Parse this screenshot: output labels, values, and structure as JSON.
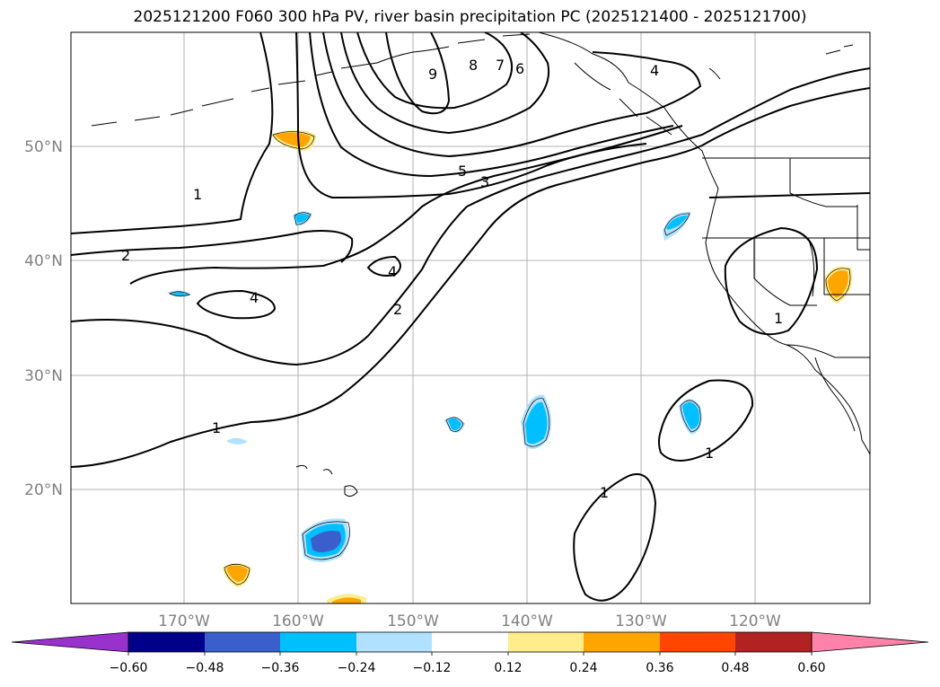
{
  "title": "2025121200 F060 300 hPa PV, river basin precipitation PC (2025121400 - 2025121700)",
  "map": {
    "lat_labels": [
      "50°N",
      "40°N",
      "30°N",
      "20°N"
    ],
    "lon_labels": [
      "170°W",
      "160°W",
      "150°W",
      "140°W",
      "130°W",
      "120°W"
    ],
    "contour_labels": [
      "9",
      "8",
      "7",
      "6",
      "4",
      "5",
      "3",
      "1",
      "2",
      "4",
      "4",
      "2",
      "1",
      "1",
      "1",
      "1"
    ]
  },
  "colorbar": {
    "ticks": [
      "−0.60",
      "−0.48",
      "−0.36",
      "−0.24",
      "−0.12",
      "0.12",
      "0.24",
      "0.36",
      "0.48",
      "0.60"
    ],
    "colors": [
      "#9932cc",
      "#00008b",
      "#3a5fcd",
      "#00bfff",
      "#b0e2ff",
      "#ffffff",
      "#ffec8b",
      "#ffa500",
      "#ff4500",
      "#b22222",
      "#ff82ab"
    ]
  }
}
